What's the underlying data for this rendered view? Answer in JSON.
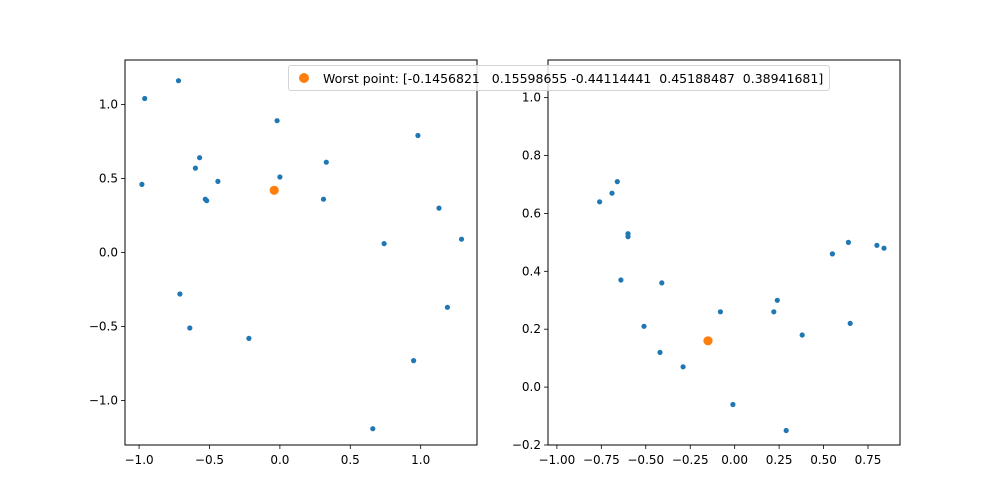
{
  "figure": {
    "legend": {
      "label": "Worst point: [-0.1456821   0.15598655 -0.44114441  0.45188487  0.38941681]"
    },
    "colors": {
      "points": "#1f77b4",
      "worst": "#ff7f0e",
      "axis": "#000000"
    }
  },
  "chart_data": [
    {
      "type": "scatter",
      "title": "",
      "xlabel": "",
      "ylabel": "",
      "xlim": [
        -1.1,
        1.4
      ],
      "ylim": [
        -1.3,
        1.3
      ],
      "xticks": [
        -1.0,
        -0.5,
        0.0,
        0.5,
        1.0
      ],
      "xtick_labels": [
        "−1.0",
        "−0.5",
        "0.0",
        "0.5",
        "1.0"
      ],
      "yticks": [
        -1.0,
        -0.5,
        0.0,
        0.5,
        1.0
      ],
      "ytick_labels": [
        "−1.0",
        "−0.5",
        "0.0",
        "0.5",
        "1.0"
      ],
      "series": [
        {
          "points": [
            [
              -0.96,
              1.04
            ],
            [
              -0.72,
              1.16
            ],
            [
              -0.98,
              0.46
            ],
            [
              -0.6,
              0.57
            ],
            [
              -0.57,
              0.64
            ],
            [
              -0.53,
              0.36
            ],
            [
              -0.52,
              0.35
            ],
            [
              -0.44,
              0.48
            ],
            [
              -0.02,
              0.89
            ],
            [
              0.0,
              0.51
            ],
            [
              0.33,
              0.61
            ],
            [
              0.31,
              0.36
            ],
            [
              0.98,
              0.79
            ],
            [
              1.13,
              0.3
            ],
            [
              1.29,
              0.09
            ],
            [
              0.74,
              0.06
            ],
            [
              -0.71,
              -0.28
            ],
            [
              -0.64,
              -0.51
            ],
            [
              -0.22,
              -0.58
            ],
            [
              1.19,
              -0.37
            ],
            [
              0.95,
              -0.73
            ],
            [
              0.66,
              -1.19
            ]
          ]
        },
        {
          "points": [
            [
              -0.04,
              0.42
            ]
          ]
        }
      ]
    },
    {
      "type": "scatter",
      "title": "",
      "xlabel": "",
      "ylabel": "",
      "xlim": [
        -1.05,
        0.93
      ],
      "ylim": [
        -0.2,
        1.13
      ],
      "xticks": [
        -1.0,
        -0.75,
        -0.5,
        -0.25,
        0.0,
        0.25,
        0.5,
        0.75
      ],
      "xtick_labels": [
        "−1.00",
        "−0.75",
        "−0.50",
        "−0.25",
        "0.00",
        "0.25",
        "0.50",
        "0.75"
      ],
      "yticks": [
        -0.2,
        0.0,
        0.2,
        0.4,
        0.6,
        0.8,
        1.0
      ],
      "ytick_labels": [
        "−0.2",
        "0.0",
        "0.2",
        "0.4",
        "0.6",
        "0.8",
        "1.0"
      ],
      "series": [
        {
          "points": [
            [
              -0.76,
              0.64
            ],
            [
              -0.69,
              0.67
            ],
            [
              -0.66,
              0.71
            ],
            [
              -0.6,
              0.53
            ],
            [
              -0.6,
              0.52
            ],
            [
              -0.64,
              0.37
            ],
            [
              -0.41,
              0.36
            ],
            [
              -0.51,
              0.21
            ],
            [
              -0.42,
              0.12
            ],
            [
              -0.29,
              0.07
            ],
            [
              -0.08,
              0.26
            ],
            [
              -0.01,
              -0.06
            ],
            [
              0.22,
              0.26
            ],
            [
              0.24,
              0.3
            ],
            [
              0.38,
              0.18
            ],
            [
              0.29,
              -0.15
            ],
            [
              0.55,
              0.46
            ],
            [
              0.64,
              0.5
            ],
            [
              0.65,
              0.22
            ],
            [
              0.8,
              0.49
            ],
            [
              0.84,
              0.48
            ]
          ]
        },
        {
          "points": [
            [
              -0.15,
              0.16
            ]
          ]
        }
      ]
    }
  ]
}
